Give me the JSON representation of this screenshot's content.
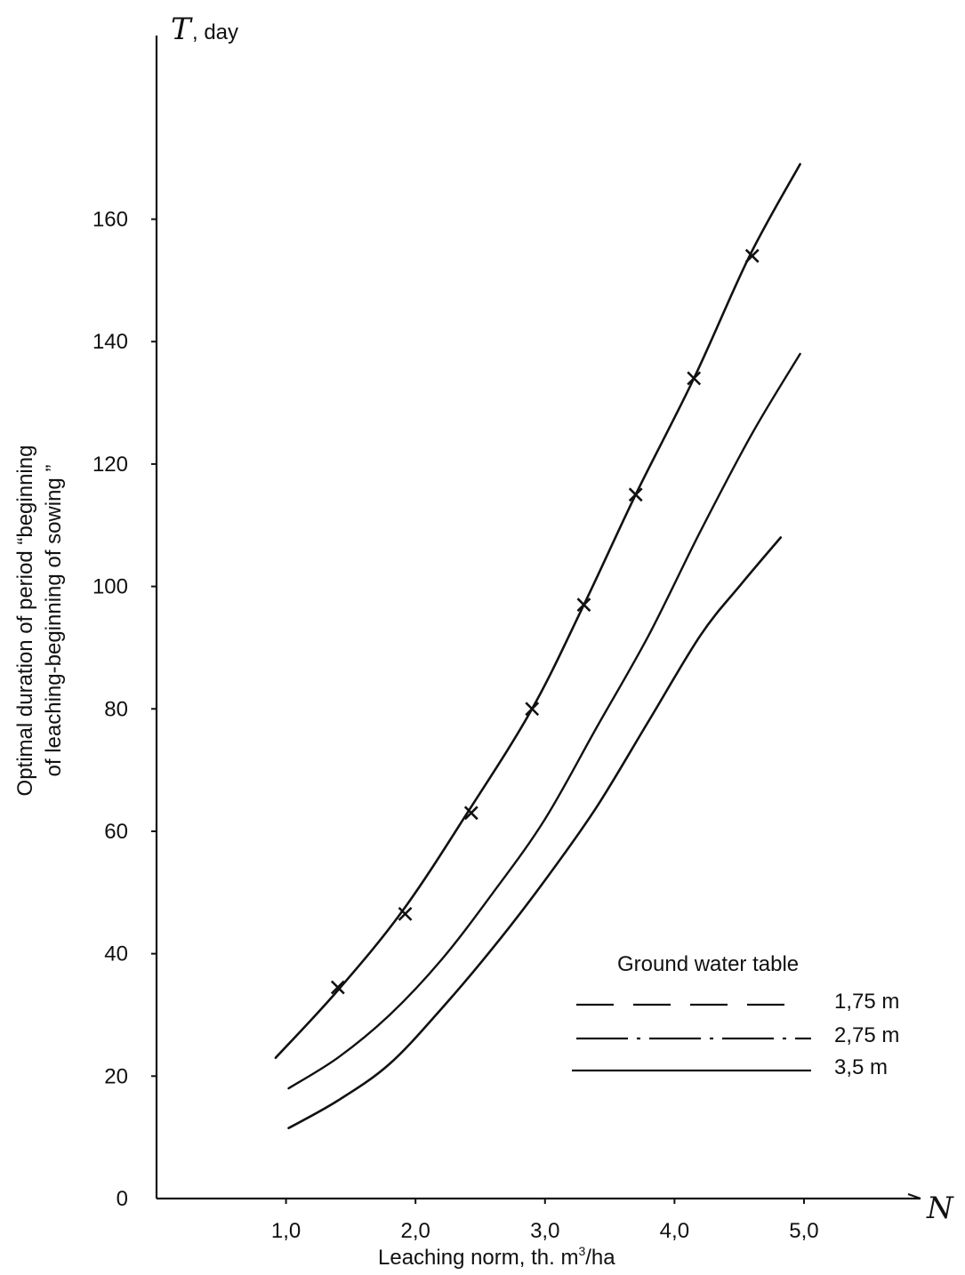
{
  "chart_data": {
    "type": "line",
    "y_axis_symbol": "T",
    "y_axis_unit": ", day",
    "x_axis_symbol": "N",
    "ylabel_line1": "Optimal duration of period “beginning",
    "ylabel_line2": "of leaching-beginning of sowing ”",
    "xlabel_main": "Leaching norm, th. m",
    "xlabel_sup": "3",
    "xlabel_end": "/ha",
    "xlim": [
      0,
      5.9
    ],
    "ylim": [
      0,
      190
    ],
    "x_ticks": [
      1.0,
      2.0,
      3.0,
      4.0,
      5.0
    ],
    "x_tick_labels": [
      "1,0",
      "2,0",
      "3,0",
      "4,0",
      "5,0"
    ],
    "y_ticks": [
      0,
      20,
      40,
      60,
      80,
      100,
      120,
      140,
      160
    ],
    "y_tick_labels": [
      "0",
      "20",
      "40",
      "60",
      "80",
      "100",
      "120",
      "140",
      "160"
    ],
    "grid": false,
    "legend_title": "Ground water table",
    "legend_position": "bottom-right",
    "series": [
      {
        "name": "1,75 m",
        "style": "dashed",
        "x": [
          0.92,
          1.4,
          1.9,
          2.4,
          2.9,
          3.3,
          3.7,
          4.15,
          4.58,
          4.97
        ],
        "y": [
          23,
          34,
          47,
          63,
          80,
          97,
          115,
          134,
          154,
          169
        ],
        "markers_x": [
          1.4,
          1.92,
          2.43,
          2.9,
          3.3,
          3.7,
          4.15,
          4.6
        ],
        "markers_y": [
          34.5,
          46.5,
          63,
          80,
          97,
          115,
          134,
          154
        ]
      },
      {
        "name": "2,75 m",
        "style": "dashdot",
        "x": [
          1.02,
          1.4,
          1.8,
          2.2,
          2.6,
          3.0,
          3.4,
          3.8,
          4.2,
          4.6,
          4.97
        ],
        "y": [
          18,
          23,
          30,
          39,
          50,
          62,
          77,
          92,
          109,
          125,
          138
        ]
      },
      {
        "name": "3,5 m",
        "style": "solid",
        "x": [
          1.02,
          1.4,
          1.8,
          2.2,
          2.6,
          3.0,
          3.4,
          3.8,
          4.2,
          4.5,
          4.82
        ],
        "y": [
          11.5,
          16,
          22,
          31,
          41,
          52,
          64,
          78,
          92,
          100,
          108
        ]
      }
    ]
  }
}
